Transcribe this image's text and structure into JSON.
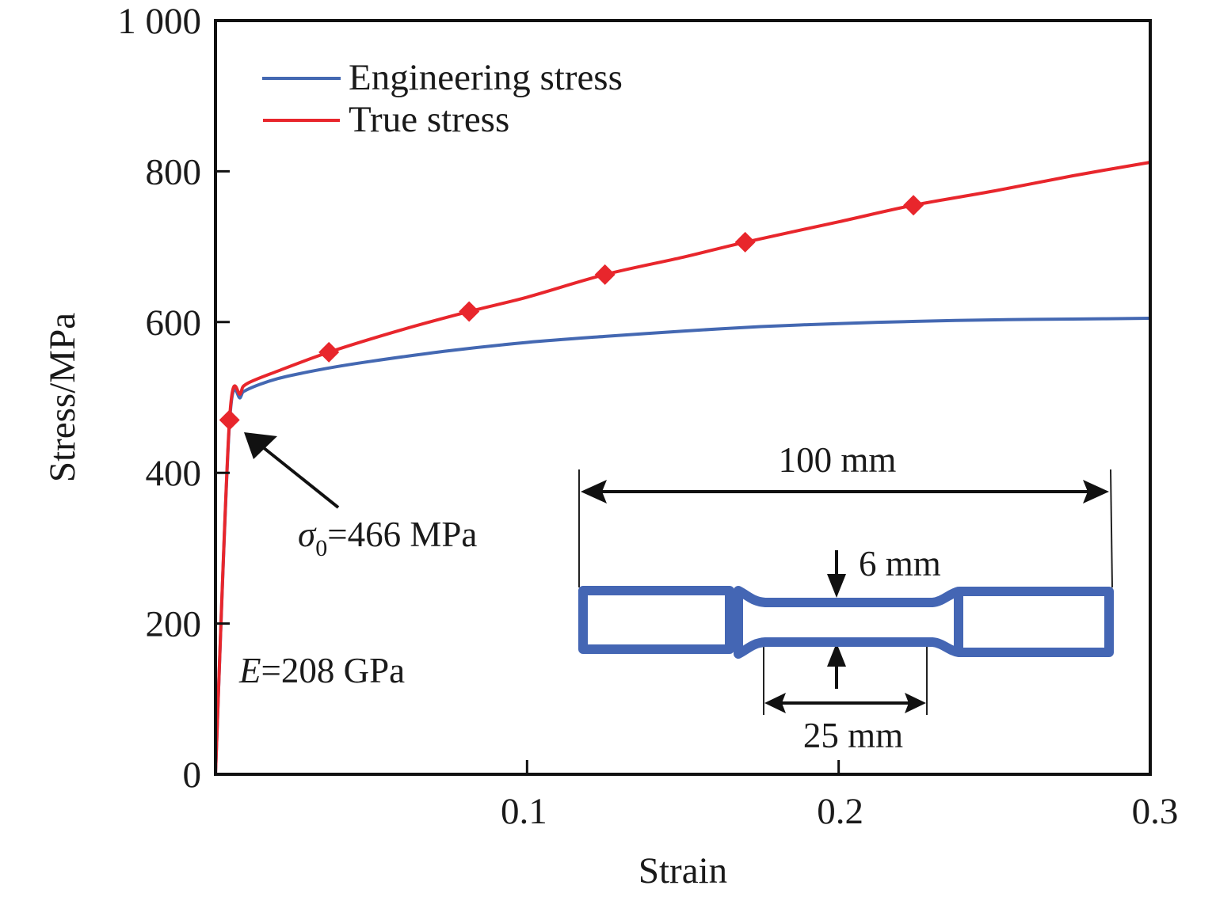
{
  "chart_data": {
    "type": "line",
    "title": "",
    "xlabel": "Strain",
    "ylabel": "Stress/MPa",
    "xlim": [
      0,
      0.3
    ],
    "ylim": [
      0,
      1000
    ],
    "x_ticks": [
      0.1,
      0.2,
      0.3
    ],
    "x_tick_labels": [
      "0.1",
      "0.2",
      "0.3"
    ],
    "y_ticks": [
      0,
      200,
      400,
      600,
      800,
      1000
    ],
    "y_tick_labels": [
      "0",
      "200",
      "400",
      "600",
      "800",
      "1 000"
    ],
    "grid": false,
    "legend": {
      "placement": "top-left"
    },
    "series": [
      {
        "name": "Engineering stress",
        "color": "#4468b2",
        "x": [
          0,
          0.0045,
          0.008,
          0.01,
          0.02,
          0.035,
          0.05,
          0.075,
          0.1,
          0.125,
          0.15,
          0.175,
          0.2,
          0.225,
          0.25,
          0.275,
          0.3
        ],
        "y": [
          0,
          466,
          500,
          510,
          525,
          538,
          548,
          562,
          573,
          581,
          588,
          594,
          598,
          601,
          603,
          604,
          605
        ]
      },
      {
        "name": "True stress",
        "color": "#e8262c",
        "x": [
          0,
          0.0045,
          0.008,
          0.01,
          0.02,
          0.0364,
          0.06,
          0.0814,
          0.1,
          0.125,
          0.15,
          0.17,
          0.2,
          0.224,
          0.25,
          0.275,
          0.3
        ],
        "y": [
          0,
          470,
          505,
          518,
          535,
          560,
          590,
          614,
          633,
          663,
          686,
          706,
          733,
          755,
          774,
          794,
          812
        ],
        "markers": {
          "shape": "diamond",
          "x": [
            0.0045,
            0.0364,
            0.0814,
            0.125,
            0.17,
            0.224
          ],
          "y": [
            470,
            560,
            614,
            663,
            706,
            755
          ]
        }
      }
    ],
    "annotations": [
      {
        "name": "yield-stress",
        "text_symbol": "σ",
        "text_subscript": "0",
        "text_rest": "=466 MPa",
        "points_to": [
          0.0045,
          470
        ]
      },
      {
        "name": "youngs-modulus",
        "text_symbol": "E",
        "text_rest": "=208 GPa"
      }
    ],
    "specimen_inset": {
      "color": "#4466b4",
      "total_length_label": "100 mm",
      "width_label": "6 mm",
      "gauge_length_label": "25 mm"
    }
  }
}
